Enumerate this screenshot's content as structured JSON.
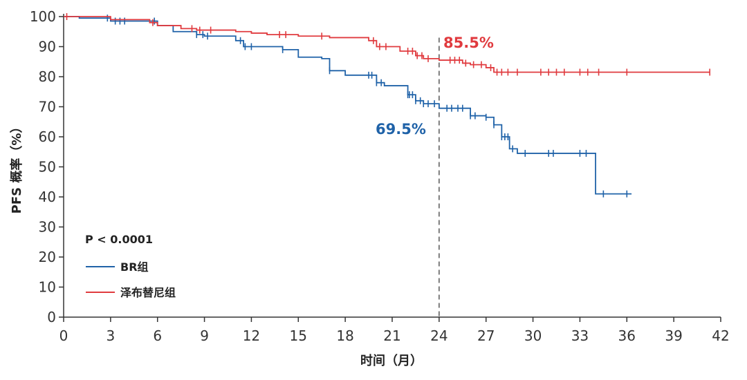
{
  "chart_data": {
    "type": "line",
    "title": "",
    "xlabel": "时间（月）",
    "ylabel": "PFS 概率（%）",
    "xlim": [
      0,
      42
    ],
    "ylim": [
      0,
      100
    ],
    "x_ticks": [
      0,
      3,
      6,
      9,
      12,
      15,
      18,
      21,
      24,
      27,
      30,
      33,
      36,
      39,
      42
    ],
    "y_ticks": [
      0,
      10,
      20,
      30,
      40,
      50,
      60,
      70,
      80,
      90,
      100
    ],
    "p_value": "P < 0.0001",
    "reference_line_x": 24,
    "legend_position": "bottom-left",
    "series": [
      {
        "name": "BR组",
        "color": "#1f62a8",
        "label": "69.5%",
        "points": [
          [
            0,
            100
          ],
          [
            1,
            99.5
          ],
          [
            3,
            98.5
          ],
          [
            6,
            97
          ],
          [
            7,
            95
          ],
          [
            8.5,
            94
          ],
          [
            9,
            93.5
          ],
          [
            11,
            92
          ],
          [
            11.5,
            90
          ],
          [
            14,
            89
          ],
          [
            15,
            86.5
          ],
          [
            16.5,
            86
          ],
          [
            17,
            82
          ],
          [
            18,
            80.5
          ],
          [
            20,
            78
          ],
          [
            20.5,
            77
          ],
          [
            21.5,
            77
          ],
          [
            22,
            74
          ],
          [
            22.5,
            72
          ],
          [
            23,
            71
          ],
          [
            24,
            69.5
          ],
          [
            26,
            67
          ],
          [
            27,
            66.5
          ],
          [
            27.5,
            64
          ],
          [
            28,
            60
          ],
          [
            28.5,
            56
          ],
          [
            29,
            54.5
          ],
          [
            31,
            54.5
          ],
          [
            33.5,
            54.5
          ],
          [
            34,
            41
          ],
          [
            36.3,
            41
          ]
        ],
        "censors": [
          2.8,
          3.3,
          3.6,
          3.9,
          5.8,
          8.5,
          8.9,
          9.2,
          11.3,
          11.6,
          12.0,
          14.0,
          17.0,
          19.5,
          19.7,
          20.0,
          20.3,
          22.0,
          22.1,
          22.3,
          22.5,
          22.8,
          23.0,
          23.3,
          23.7,
          24.5,
          24.8,
          25.2,
          25.5,
          26.0,
          26.3,
          27.0,
          27.5,
          28.0,
          28.2,
          28.4,
          28.7,
          29.5,
          31.0,
          31.3,
          33.0,
          33.4,
          34.5,
          36.0
        ]
      },
      {
        "name": "泽布替尼组",
        "color": "#e03a3e",
        "label": "85.5%",
        "points": [
          [
            0,
            100
          ],
          [
            3,
            99
          ],
          [
            5.5,
            98
          ],
          [
            6,
            97
          ],
          [
            7.5,
            96
          ],
          [
            8.5,
            95.5
          ],
          [
            11,
            95
          ],
          [
            12,
            94.5
          ],
          [
            13,
            94
          ],
          [
            15,
            93.5
          ],
          [
            17,
            93
          ],
          [
            19.5,
            92
          ],
          [
            20,
            90
          ],
          [
            21.5,
            88.5
          ],
          [
            22.5,
            87
          ],
          [
            23,
            86
          ],
          [
            24,
            85.5
          ],
          [
            25.5,
            84.5
          ],
          [
            26,
            84
          ],
          [
            27,
            83
          ],
          [
            27.5,
            81.5
          ],
          [
            41.3,
            81.5
          ]
        ],
        "censors": [
          0.2,
          5.7,
          8.2,
          8.7,
          9.4,
          13.8,
          14.2,
          16.5,
          19.8,
          20.2,
          20.6,
          22.0,
          22.3,
          22.6,
          22.9,
          23.3,
          24.7,
          25.0,
          25.3,
          25.7,
          26.2,
          26.7,
          27.3,
          27.7,
          28.0,
          28.4,
          29.0,
          30.5,
          31.0,
          31.5,
          32.0,
          33.0,
          33.5,
          34.2,
          36.0,
          41.3
        ]
      }
    ]
  }
}
